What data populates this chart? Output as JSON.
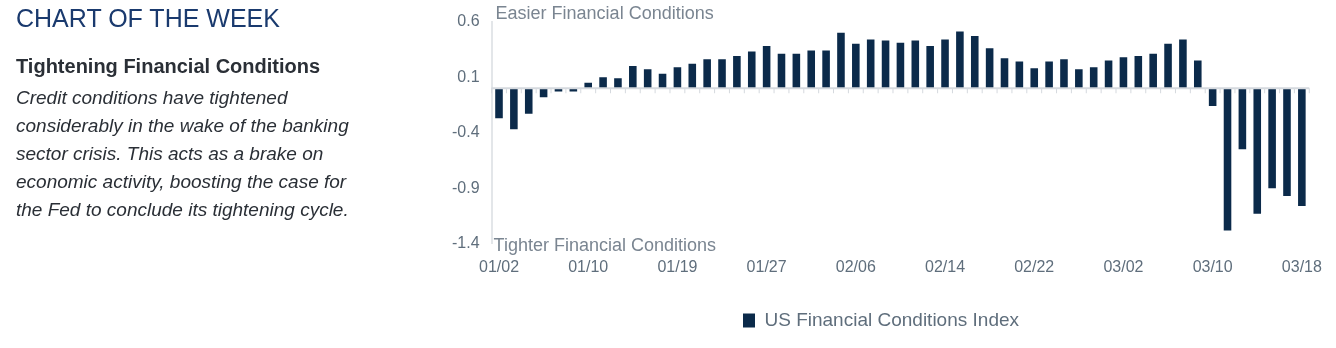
{
  "chart_data": {
    "type": "bar",
    "title": "CHART OF THE WEEK",
    "subtitle": "Tightening Financial Conditions",
    "annotations": [
      "Credit conditions have tightened considerably in the wake of the banking sector crisis. This acts as a brake on economic activity, boosting the case for the Fed to conclude its tightening cycle.",
      "Easier Financial Conditions",
      "Tighter Financial Conditions"
    ],
    "categories": [
      "01/02",
      null,
      null,
      null,
      null,
      null,
      "01/10",
      null,
      null,
      null,
      null,
      null,
      "01/19",
      null,
      null,
      null,
      null,
      null,
      "01/27",
      null,
      null,
      null,
      null,
      null,
      "02/06",
      null,
      null,
      null,
      null,
      null,
      "02/14",
      null,
      null,
      null,
      null,
      null,
      "02/22",
      null,
      null,
      null,
      null,
      null,
      "03/02",
      null,
      null,
      null,
      null,
      null,
      "03/10",
      null,
      null,
      null,
      null,
      null,
      "03/18"
    ],
    "series": [
      {
        "name": "US Financial Conditions Index",
        "color": "#0b2a4a",
        "values": [
          -0.27,
          -0.37,
          -0.23,
          -0.08,
          -0.03,
          -0.03,
          0.05,
          0.1,
          0.09,
          0.2,
          0.17,
          0.13,
          0.19,
          0.22,
          0.26,
          0.26,
          0.29,
          0.33,
          0.38,
          0.31,
          0.31,
          0.34,
          0.34,
          0.5,
          0.4,
          0.44,
          0.43,
          0.41,
          0.43,
          0.38,
          0.44,
          0.51,
          0.47,
          0.36,
          0.27,
          0.24,
          0.18,
          0.24,
          0.26,
          0.17,
          0.19,
          0.25,
          0.28,
          0.29,
          0.31,
          0.4,
          0.44,
          0.25,
          -0.16,
          -1.28,
          -0.55,
          -1.13,
          -0.9,
          -0.97,
          -1.06
        ]
      }
    ],
    "ylim": [
      -1.4,
      0.6
    ],
    "yticks": [
      0.6,
      0.1,
      -0.4,
      -0.9,
      -1.4
    ],
    "grid": false,
    "legend": "bottom"
  }
}
